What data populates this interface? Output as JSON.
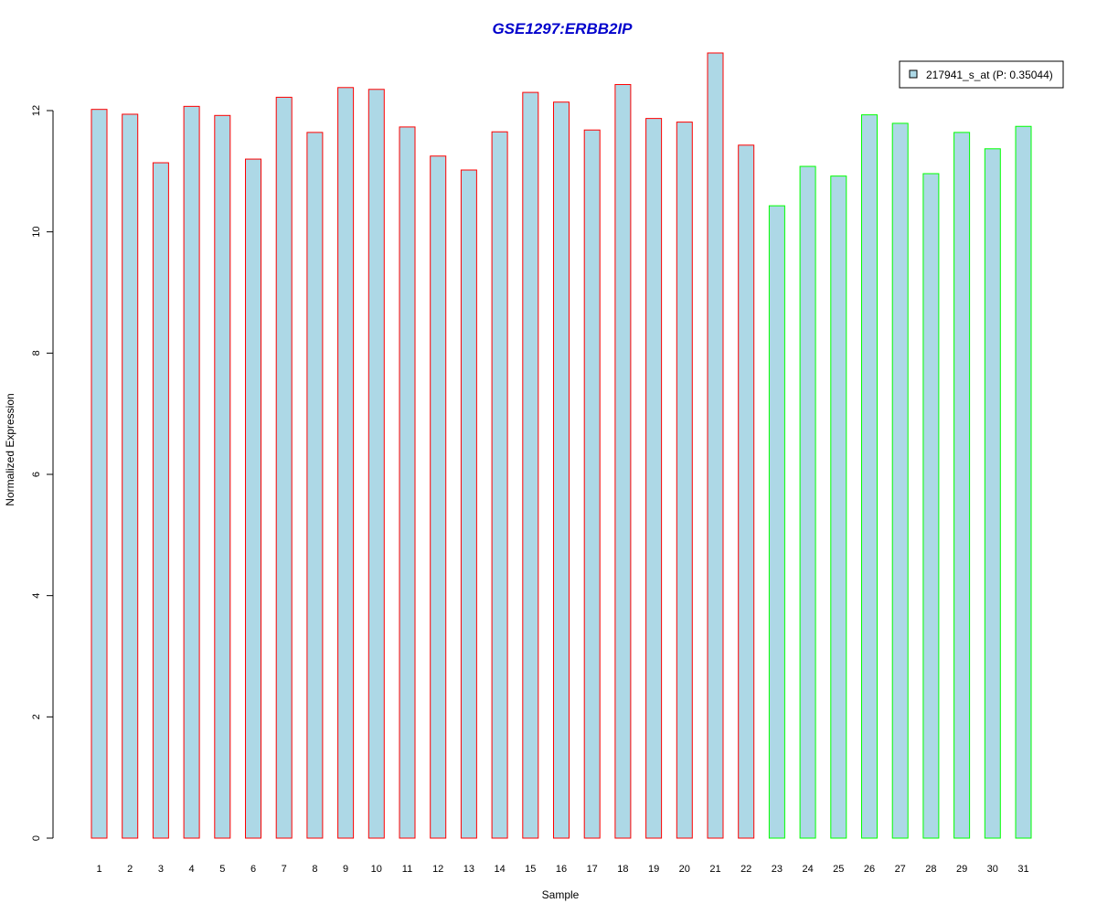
{
  "chart_data": {
    "type": "bar",
    "title": "GSE1297:ERBB2IP",
    "xlabel": "Sample",
    "ylabel": "Normalized Expression",
    "ylim": [
      0,
      13
    ],
    "yticks": [
      0,
      2,
      4,
      6,
      8,
      10,
      12
    ],
    "grid": false,
    "legend_position": "top-right",
    "legend": [
      "217941_s_at (P: 0.35044)"
    ],
    "categories": [
      "1",
      "2",
      "3",
      "4",
      "5",
      "6",
      "7",
      "8",
      "9",
      "10",
      "11",
      "12",
      "13",
      "14",
      "15",
      "16",
      "17",
      "18",
      "19",
      "20",
      "21",
      "22",
      "23",
      "24",
      "25",
      "26",
      "27",
      "28",
      "29",
      "30",
      "31"
    ],
    "series": [
      {
        "name": "217941_s_at (P: 0.35044)",
        "values": [
          12.02,
          11.94,
          11.14,
          12.07,
          11.92,
          11.2,
          12.22,
          11.64,
          12.38,
          12.35,
          11.73,
          11.25,
          11.02,
          11.65,
          12.3,
          12.14,
          11.68,
          12.43,
          11.87,
          11.81,
          12.95,
          11.43,
          10.43,
          11.08,
          10.92,
          11.93,
          11.79,
          10.96,
          11.64,
          11.37,
          11.74
        ],
        "groups": [
          "red",
          "red",
          "red",
          "red",
          "red",
          "red",
          "red",
          "red",
          "red",
          "red",
          "red",
          "red",
          "red",
          "red",
          "red",
          "red",
          "red",
          "red",
          "red",
          "red",
          "red",
          "red",
          "green",
          "green",
          "green",
          "green",
          "green",
          "green",
          "green",
          "green",
          "green"
        ]
      }
    ],
    "colors": {
      "fill": "#add8e6",
      "border_group_red": "#ff0000",
      "border_group_green": "#00ff00",
      "title": "#0000cc"
    }
  }
}
